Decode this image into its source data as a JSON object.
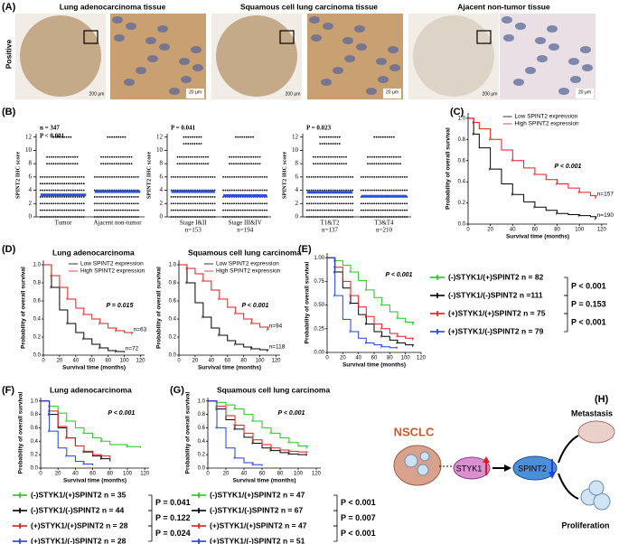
{
  "panel_a": {
    "label": "(A)",
    "row_label": "Positive",
    "tissues": [
      {
        "title": "Lung adenocarcinoma tissue",
        "scale_low": "200 μm",
        "scale_high": "20 μm"
      },
      {
        "title": "Squamous cell lung carcinoma tissue",
        "scale_low": "200 μm",
        "scale_high": "20 μm"
      },
      {
        "title": "Ajacent non-tumor tissue",
        "scale_low": "200 μm",
        "scale_high": "20 μm"
      }
    ]
  },
  "panel_b": {
    "label": "(B)",
    "y_label": "SPINT2 IHC score",
    "ylim": [
      0,
      12.5
    ],
    "yticks": [
      0,
      2,
      4,
      6,
      8,
      10,
      12
    ],
    "plots": [
      {
        "notes": [
          "n = 347",
          "P < 0.001"
        ],
        "groups": [
          {
            "name": "Tumor",
            "mean": 3.3,
            "levels": [
              0,
              1,
              2,
              3,
              4,
              5,
              6,
              8,
              9,
              12
            ]
          },
          {
            "name": "Ajacent non-tumor",
            "mean": 3.8,
            "levels": [
              0,
              1,
              2,
              3,
              4,
              6,
              8,
              9,
              12
            ]
          }
        ]
      },
      {
        "notes": [
          "P = 0.041"
        ],
        "groups": [
          {
            "name": "Stage I&II",
            "n": "n=153",
            "mean": 3.8,
            "levels": [
              0,
              1,
              2,
              3,
              4,
              6,
              8,
              9,
              11,
              12
            ]
          },
          {
            "name": "Stage III&IV",
            "n": "n=194",
            "mean": 3.2,
            "levels": [
              0,
              1,
              2,
              3,
              4,
              6,
              8,
              9,
              12
            ]
          }
        ]
      },
      {
        "notes": [
          "P = 0.023"
        ],
        "groups": [
          {
            "name": "T1&T2",
            "n": "n=137",
            "mean": 3.7,
            "levels": [
              0,
              1,
              2,
              3,
              4,
              6,
              8,
              9,
              11,
              12
            ]
          },
          {
            "name": "T3&T4",
            "n": "n=210",
            "mean": 3.1,
            "levels": [
              0,
              1,
              2,
              3,
              4,
              6,
              8,
              9,
              12
            ]
          }
        ]
      }
    ]
  },
  "panel_c": {
    "label": "(C)",
    "y_label": "Probability of overall survival",
    "x_label": "Survival time (months)",
    "p_text": "P < 0.001",
    "xlim": [
      0,
      125
    ],
    "xticks": [
      0,
      20,
      40,
      60,
      80,
      100,
      120
    ],
    "ylim": [
      0,
      1.05
    ],
    "yticks": [
      {
        "value": 0,
        "label": "0.0"
      },
      0.2,
      0.4,
      0.6,
      0.8,
      {
        "value": 1,
        "label": "1.0"
      }
    ],
    "series": [
      {
        "name": "Low SPINT2 expression",
        "color": "#000000",
        "n_label": "n=190",
        "x": [
          0,
          5,
          10,
          20,
          30,
          40,
          50,
          60,
          70,
          80,
          90,
          100,
          110,
          115
        ],
        "values": [
          1,
          0.85,
          0.72,
          0.52,
          0.38,
          0.28,
          0.21,
          0.16,
          0.13,
          0.1,
          0.09,
          0.08,
          0.07,
          0.05
        ]
      },
      {
        "name": "High SPINT2 expression",
        "color": "#e31a1c",
        "n_label": "n=157",
        "x": [
          0,
          5,
          10,
          20,
          30,
          40,
          50,
          60,
          70,
          80,
          90,
          100,
          110,
          115
        ],
        "values": [
          1,
          0.96,
          0.9,
          0.8,
          0.7,
          0.6,
          0.53,
          0.47,
          0.42,
          0.38,
          0.34,
          0.3,
          0.27,
          0.25
        ]
      }
    ]
  },
  "panel_d": {
    "label": "(D)",
    "plots": [
      {
        "title": "Lung adenocarcinoma",
        "y_label": "Probability of overall survival",
        "x_label": "Survival time (months)",
        "p_text": "P = 0.015",
        "xlim": [
          0,
          125
        ],
        "xticks": [
          0,
          20,
          40,
          60,
          80,
          100,
          120
        ],
        "ylim": [
          0,
          1.05
        ],
        "yticks": [
          {
            "value": 0,
            "label": "0.0"
          },
          0.2,
          0.4,
          0.6,
          0.8,
          {
            "value": 1,
            "label": "1.0"
          }
        ],
        "series": [
          {
            "name": "Low SPINT2 expression",
            "color": "#000000",
            "n_label": "n=72",
            "x": [
              0,
              10,
              20,
              30,
              40,
              50,
              60,
              70,
              80,
              90,
              100
            ],
            "values": [
              1,
              0.75,
              0.5,
              0.35,
              0.25,
              0.18,
              0.12,
              0.08,
              0.05,
              0.04,
              0.03
            ]
          },
          {
            "name": "High SPINT2 expression",
            "color": "#e31a1c",
            "n_label": "n=63",
            "x": [
              0,
              10,
              20,
              30,
              40,
              50,
              60,
              70,
              80,
              90,
              100,
              110
            ],
            "values": [
              1,
              0.88,
              0.75,
              0.62,
              0.52,
              0.45,
              0.4,
              0.35,
              0.3,
              0.27,
              0.25,
              0.24
            ]
          }
        ]
      },
      {
        "title": "Squamous cell lung carcinoma",
        "y_label": "Probability of overall survival",
        "x_label": "Survival time (months)",
        "p_text": "P < 0.001",
        "xlim": [
          0,
          125
        ],
        "xticks": [
          0,
          20,
          40,
          60,
          80,
          100,
          120
        ],
        "ylim": [
          0,
          1.05
        ],
        "yticks": [
          {
            "value": 0,
            "label": "0.0"
          },
          0.2,
          0.4,
          0.6,
          0.8,
          {
            "value": 1,
            "label": "1.0"
          }
        ],
        "series": [
          {
            "name": "Low SPINT2 expression",
            "color": "#000000",
            "n_label": "n=118",
            "x": [
              0,
              10,
              20,
              30,
              40,
              50,
              60,
              70,
              80,
              90,
              100,
              110
            ],
            "values": [
              1,
              0.8,
              0.58,
              0.42,
              0.3,
              0.22,
              0.16,
              0.12,
              0.09,
              0.07,
              0.06,
              0.05
            ]
          },
          {
            "name": "High SPINT2 expression",
            "color": "#e31a1c",
            "n_label": "n=94",
            "x": [
              0,
              10,
              20,
              30,
              40,
              50,
              60,
              70,
              80,
              90,
              100,
              110
            ],
            "values": [
              1,
              0.96,
              0.9,
              0.82,
              0.72,
              0.62,
              0.53,
              0.46,
              0.4,
              0.35,
              0.31,
              0.28
            ]
          }
        ]
      }
    ]
  },
  "panel_e": {
    "label": "(E)",
    "y_label": "Probability of overall survival",
    "x_label": "Survival time (months)",
    "p_text": "P < 0.001",
    "xlim": [
      0,
      120
    ],
    "xticks": [
      0,
      20,
      40,
      60,
      80,
      100,
      120
    ],
    "ylim": [
      0,
      1.05
    ],
    "yticks": [
      {
        "value": 0,
        "label": "0.00"
      },
      {
        "value": 0.25,
        "label": "0.25"
      },
      {
        "value": 0.5,
        "label": "0.50"
      },
      {
        "value": 0.75,
        "label": "0.75"
      },
      {
        "value": 1,
        "label": "1.00"
      }
    ],
    "series": [
      {
        "name": "(-)STYK1/(+)SPINT2 n = 82",
        "color": "#22c322",
        "x": [
          0,
          10,
          20,
          30,
          40,
          50,
          60,
          70,
          80,
          90,
          100,
          110
        ],
        "values": [
          1,
          0.97,
          0.92,
          0.85,
          0.76,
          0.66,
          0.58,
          0.5,
          0.43,
          0.36,
          0.32,
          0.3
        ]
      },
      {
        "name": "(-)STYK1/(-)SPINT2 n =111",
        "color": "#000000",
        "x": [
          0,
          10,
          20,
          30,
          40,
          50,
          60,
          70,
          80,
          90,
          100,
          110
        ],
        "values": [
          1,
          0.85,
          0.68,
          0.52,
          0.4,
          0.3,
          0.22,
          0.17,
          0.13,
          0.1,
          0.08,
          0.07
        ]
      },
      {
        "name": "(+)STYK1/(+)SPINT2 n = 75",
        "color": "#e31a1c",
        "x": [
          0,
          10,
          20,
          30,
          40,
          50,
          60,
          70,
          80,
          90,
          100,
          110
        ],
        "values": [
          1,
          0.9,
          0.75,
          0.6,
          0.48,
          0.38,
          0.3,
          0.25,
          0.2,
          0.17,
          0.15,
          0.14
        ]
      },
      {
        "name": "(+)STYK1/(-)SPINT2 n = 79",
        "color": "#1f3fe0",
        "x": [
          0,
          10,
          20,
          30,
          40,
          50,
          60,
          70,
          80,
          90
        ],
        "values": [
          1,
          0.6,
          0.35,
          0.22,
          0.15,
          0.1,
          0.08,
          0.06,
          0.05,
          0.05
        ]
      }
    ],
    "p_values": [
      "P < 0.001",
      "P = 0.153",
      "P < 0.001"
    ]
  },
  "panel_f": {
    "label": "(F)",
    "title": "Lung adenocarcinoma",
    "y_label": "Probability of overall survival",
    "x_label": "Survival time (months)",
    "p_text": "P < 0.001",
    "xlim": [
      0,
      125
    ],
    "xticks": [
      0,
      20,
      40,
      60,
      80,
      100,
      120
    ],
    "ylim": [
      0,
      1.05
    ],
    "yticks": [
      {
        "value": 0,
        "label": "0.0"
      },
      0.2,
      0.4,
      0.6,
      0.8,
      {
        "value": 1,
        "label": "1.0"
      }
    ],
    "series": [
      {
        "name": "(-)STYK1/(+)SPINT2 n = 35",
        "color": "#22c322",
        "x": [
          0,
          10,
          20,
          30,
          40,
          50,
          60,
          70,
          80,
          100,
          115
        ],
        "values": [
          1,
          0.92,
          0.82,
          0.7,
          0.6,
          0.52,
          0.45,
          0.4,
          0.35,
          0.32,
          0.3
        ]
      },
      {
        "name": "(-)STYK1/(-)SPINT2 n = 44",
        "color": "#000000",
        "x": [
          0,
          10,
          20,
          30,
          40,
          50,
          60,
          70,
          80
        ],
        "values": [
          1,
          0.8,
          0.6,
          0.45,
          0.33,
          0.24,
          0.18,
          0.14,
          0.1
        ]
      },
      {
        "name": "(+)STYK1/(+)SPINT2 n = 28",
        "color": "#e31a1c",
        "x": [
          0,
          10,
          20,
          30,
          40,
          50,
          60,
          70,
          80
        ],
        "values": [
          1,
          0.85,
          0.62,
          0.45,
          0.33,
          0.25,
          0.2,
          0.18,
          0.15
        ]
      },
      {
        "name": "(+)STYK1/(-)SPINT2 n = 28",
        "color": "#1f3fe0",
        "x": [
          0,
          10,
          20,
          30,
          40,
          50,
          60
        ],
        "values": [
          1,
          0.55,
          0.3,
          0.18,
          0.1,
          0.06,
          0.04
        ]
      }
    ],
    "p_values": [
      "P = 0.041",
      "P = 0.122",
      "P = 0.024"
    ]
  },
  "panel_g": {
    "label": "(G)",
    "title": "Squamous cell lung carcinoma",
    "y_label": "Probability of overall survival",
    "x_label": "Survival time (months)",
    "p_text": "P < 0.001",
    "xlim": [
      0,
      125
    ],
    "xticks": [
      0,
      20,
      40,
      60,
      80,
      100,
      120
    ],
    "ylim": [
      0,
      1.05
    ],
    "yticks": [
      {
        "value": 0,
        "label": "0.0"
      },
      0.2,
      0.4,
      0.6,
      0.8,
      {
        "value": 1,
        "label": "1.0"
      }
    ],
    "series": [
      {
        "name": "(-)STYK1/(+)SPINT2 n = 47",
        "color": "#22c322",
        "x": [
          0,
          10,
          20,
          30,
          40,
          50,
          60,
          70,
          80,
          90,
          100,
          110
        ],
        "values": [
          1,
          0.98,
          0.94,
          0.88,
          0.8,
          0.7,
          0.6,
          0.52,
          0.45,
          0.38,
          0.33,
          0.3
        ]
      },
      {
        "name": "(-)STYK1/(-)SPINT2 n = 67",
        "color": "#000000",
        "x": [
          0,
          10,
          20,
          30,
          40,
          50,
          60,
          70,
          80,
          90,
          100,
          110
        ],
        "values": [
          1,
          0.88,
          0.72,
          0.58,
          0.46,
          0.37,
          0.3,
          0.26,
          0.23,
          0.21,
          0.2,
          0.2
        ]
      },
      {
        "name": "(+)STYK1/(+)SPINT2 n = 47",
        "color": "#e31a1c",
        "x": [
          0,
          10,
          20,
          30,
          40,
          50,
          60,
          70,
          80,
          90,
          100,
          110
        ],
        "values": [
          1,
          0.92,
          0.78,
          0.64,
          0.52,
          0.42,
          0.35,
          0.3,
          0.27,
          0.25,
          0.24,
          0.23
        ]
      },
      {
        "name": "(+)STYK1/(-)SPINT2 n = 51",
        "color": "#1f3fe0",
        "x": [
          0,
          10,
          20,
          30,
          40,
          50,
          60
        ],
        "values": [
          1,
          0.6,
          0.3,
          0.15,
          0.08,
          0.05,
          0.03
        ]
      }
    ],
    "p_values": [
      "P < 0.001",
      "P = 0.007",
      "P < 0.001"
    ]
  },
  "panel_h": {
    "label": "(H)",
    "source": "NSCLC",
    "gene_up": "STYK1",
    "gene_down": "SPINT2",
    "outcome_top": "Metastasis",
    "outcome_bottom": "Proliferation"
  }
}
